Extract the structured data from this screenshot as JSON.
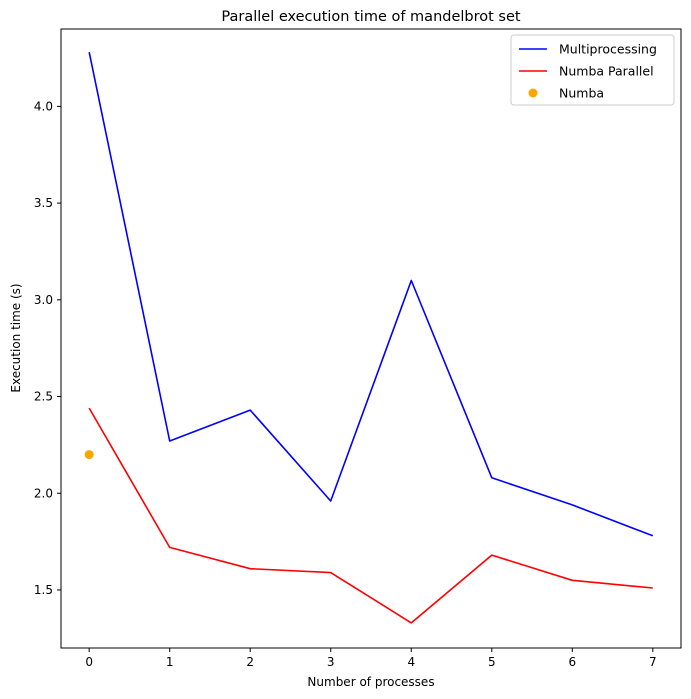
{
  "chart_data": {
    "type": "line",
    "title": "Parallel execution time of mandelbrot set",
    "xlabel": "Number of processes",
    "ylabel": "Execution time (s)",
    "x": [
      0,
      1,
      2,
      3,
      4,
      5,
      6,
      7
    ],
    "xlim": [
      -0.35,
      7.35
    ],
    "ylim": [
      1.2,
      4.4
    ],
    "xticks": [
      "0",
      "1",
      "2",
      "3",
      "4",
      "5",
      "6",
      "7"
    ],
    "yticks": [
      "1.5",
      "2.0",
      "2.5",
      "3.0",
      "3.5",
      "4.0"
    ],
    "grid": false,
    "legend_position": "top-right",
    "series": [
      {
        "name": "Multiprocessing",
        "kind": "line",
        "color": "#0000ff",
        "x": [
          0,
          1,
          2,
          3,
          4,
          5,
          6,
          7
        ],
        "values": [
          4.28,
          2.27,
          2.43,
          1.96,
          3.1,
          2.08,
          1.94,
          1.78
        ]
      },
      {
        "name": "Numba Parallel",
        "kind": "line",
        "color": "#ff0000",
        "x": [
          0,
          1,
          2,
          3,
          4,
          5,
          6,
          7
        ],
        "values": [
          2.44,
          1.72,
          1.61,
          1.59,
          1.33,
          1.68,
          1.55,
          1.51
        ]
      },
      {
        "name": "Numba",
        "kind": "scatter",
        "color": "#ffa500",
        "x": [
          0
        ],
        "values": [
          2.2
        ]
      }
    ]
  }
}
